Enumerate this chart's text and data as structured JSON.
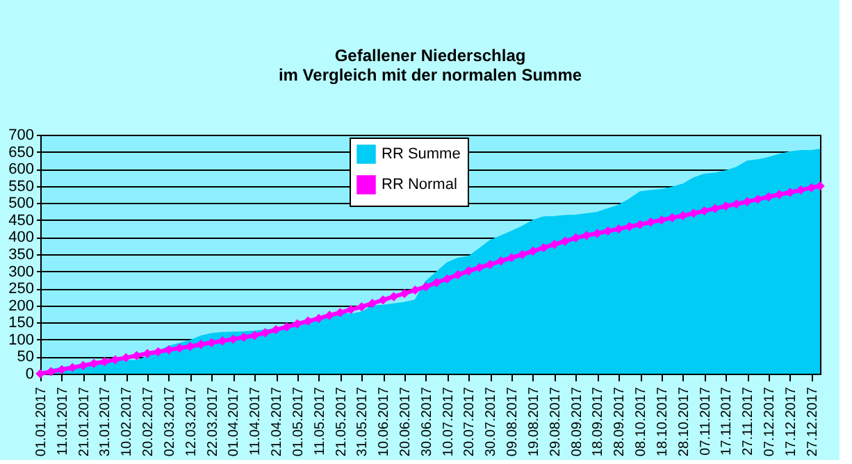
{
  "chart_data": {
    "type": "area",
    "title": "Gefallener Niederschlag\nim Vergleich mit der normalen Summe",
    "x": [
      "2017-01-01",
      "2017-01-06",
      "2017-01-11",
      "2017-01-16",
      "2017-01-21",
      "2017-01-26",
      "2017-01-31",
      "2017-02-05",
      "2017-02-10",
      "2017-02-15",
      "2017-02-20",
      "2017-02-25",
      "2017-03-02",
      "2017-03-07",
      "2017-03-12",
      "2017-03-17",
      "2017-03-22",
      "2017-03-27",
      "2017-04-01",
      "2017-04-06",
      "2017-04-11",
      "2017-04-16",
      "2017-04-21",
      "2017-04-26",
      "2017-05-01",
      "2017-05-06",
      "2017-05-11",
      "2017-05-16",
      "2017-05-21",
      "2017-05-26",
      "2017-05-31",
      "2017-06-05",
      "2017-06-10",
      "2017-06-15",
      "2017-06-20",
      "2017-06-25",
      "2017-06-30",
      "2017-07-05",
      "2017-07-10",
      "2017-07-15",
      "2017-07-20",
      "2017-07-25",
      "2017-07-30",
      "2017-08-04",
      "2017-08-09",
      "2017-08-14",
      "2017-08-19",
      "2017-08-24",
      "2017-08-29",
      "2017-09-03",
      "2017-09-08",
      "2017-09-13",
      "2017-09-18",
      "2017-09-23",
      "2017-09-28",
      "2017-10-03",
      "2017-10-08",
      "2017-10-13",
      "2017-10-18",
      "2017-10-23",
      "2017-10-28",
      "2017-11-02",
      "2017-11-07",
      "2017-11-12",
      "2017-11-17",
      "2017-11-22",
      "2017-11-27",
      "2017-12-02",
      "2017-12-07",
      "2017-12-12",
      "2017-12-17",
      "2017-12-22",
      "2017-12-27",
      "2017-12-31"
    ],
    "series": [
      {
        "name": "RR Summe",
        "type": "area",
        "color": "#00ccf5",
        "values": [
          0,
          12,
          18,
          22,
          27,
          32,
          36,
          38,
          38,
          38,
          50,
          65,
          80,
          88,
          97,
          110,
          117,
          120,
          121,
          122,
          124,
          128,
          130,
          135,
          140,
          148,
          160,
          175,
          176,
          174,
          180,
          198,
          200,
          204,
          208,
          215,
          270,
          297,
          325,
          338,
          343,
          366,
          390,
          403,
          417,
          431,
          449,
          459,
          460,
          463,
          464,
          468,
          472,
          483,
          493,
          511,
          532,
          536,
          539,
          546,
          555,
          573,
          584,
          587,
          594,
          604,
          622,
          626,
          633,
          642,
          649,
          653,
          653,
          657
        ]
      },
      {
        "name": "RR Normal",
        "type": "line",
        "color": "#ff00ff",
        "marker": "diamond",
        "values": [
          0,
          6,
          12,
          18,
          24,
          30,
          35,
          41,
          47,
          53,
          59,
          64,
          70,
          75,
          80,
          86,
          91,
          96,
          101,
          107,
          112,
          120,
          129,
          137,
          146,
          154,
          162,
          171,
          179,
          188,
          196,
          206,
          216,
          226,
          235,
          245,
          255,
          267,
          278,
          290,
          301,
          311,
          320,
          330,
          340,
          349,
          359,
          369,
          379,
          388,
          398,
          405,
          411,
          418,
          424,
          431,
          437,
          444,
          450,
          457,
          463,
          470,
          477,
          484,
          491,
          497,
          504,
          511,
          518,
          525,
          531,
          538,
          545,
          550
        ]
      }
    ],
    "xlim": [
      "2017-01-01",
      "2017-12-31"
    ],
    "xticks": [
      {
        "value": "2017-01-01",
        "label": "01.01.2017"
      },
      {
        "value": "2017-01-11",
        "label": "11.01.2017"
      },
      {
        "value": "2017-01-21",
        "label": "21.01.2017"
      },
      {
        "value": "2017-01-31",
        "label": "31.01.2017"
      },
      {
        "value": "2017-02-10",
        "label": "10.02.2017"
      },
      {
        "value": "2017-02-20",
        "label": "20.02.2017"
      },
      {
        "value": "2017-03-02",
        "label": "02.03.2017"
      },
      {
        "value": "2017-03-12",
        "label": "12.03.2017"
      },
      {
        "value": "2017-03-22",
        "label": "22.03.2017"
      },
      {
        "value": "2017-04-01",
        "label": "01.04.2017"
      },
      {
        "value": "2017-04-11",
        "label": "11.04.2017"
      },
      {
        "value": "2017-04-21",
        "label": "21.04.2017"
      },
      {
        "value": "2017-05-01",
        "label": "01.05.2017"
      },
      {
        "value": "2017-05-11",
        "label": "11.05.2017"
      },
      {
        "value": "2017-05-21",
        "label": "21.05.2017"
      },
      {
        "value": "2017-05-31",
        "label": "31.05.2017"
      },
      {
        "value": "2017-06-10",
        "label": "10.06.2017"
      },
      {
        "value": "2017-06-20",
        "label": "20.06.2017"
      },
      {
        "value": "2017-06-30",
        "label": "30.06.2017"
      },
      {
        "value": "2017-07-10",
        "label": "10.07.2017"
      },
      {
        "value": "2017-07-20",
        "label": "20.07.2017"
      },
      {
        "value": "2017-07-30",
        "label": "30.07.2017"
      },
      {
        "value": "2017-08-09",
        "label": "09.08.2017"
      },
      {
        "value": "2017-08-19",
        "label": "19.08.2017"
      },
      {
        "value": "2017-08-29",
        "label": "29.08.2017"
      },
      {
        "value": "2017-09-08",
        "label": "08.09.2017"
      },
      {
        "value": "2017-09-18",
        "label": "18.09.2017"
      },
      {
        "value": "2017-09-28",
        "label": "28.09.2017"
      },
      {
        "value": "2017-10-08",
        "label": "08.10.2017"
      },
      {
        "value": "2017-10-18",
        "label": "18.10.2017"
      },
      {
        "value": "2017-10-28",
        "label": "28.10.2017"
      },
      {
        "value": "2017-11-07",
        "label": "07.11.2017"
      },
      {
        "value": "2017-11-17",
        "label": "17.11.2017"
      },
      {
        "value": "2017-11-27",
        "label": "27.11.2017"
      },
      {
        "value": "2017-12-07",
        "label": "07.12.2017"
      },
      {
        "value": "2017-12-17",
        "label": "17.12.2017"
      },
      {
        "value": "2017-12-27",
        "label": "27.12.2017"
      }
    ],
    "ylim": [
      0,
      700
    ],
    "yticks": [
      0,
      50,
      100,
      150,
      200,
      250,
      300,
      350,
      400,
      450,
      500,
      550,
      600,
      650,
      700
    ],
    "grid": "y",
    "legend": "top"
  }
}
